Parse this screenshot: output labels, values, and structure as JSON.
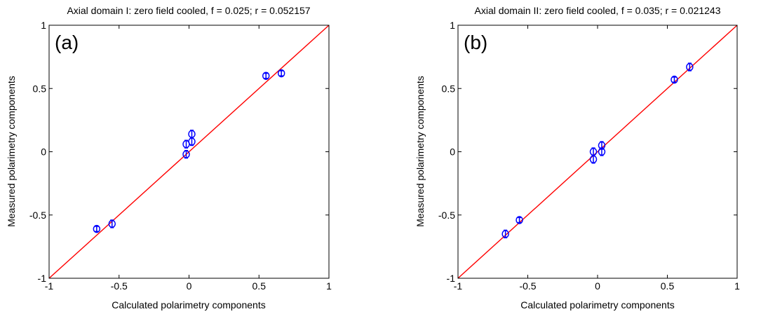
{
  "chart_data": [
    {
      "type": "scatter",
      "title": "Axial domain I: zero field cooled, f = 0.025; r = 0.052157",
      "panel_label": "(a)",
      "xlabel": "Calculated polarimetry components",
      "ylabel": "Measured polarimetry components",
      "xlim": [
        -1,
        1
      ],
      "ylim": [
        -1,
        1
      ],
      "xticks": [
        -1,
        -0.5,
        0,
        0.5,
        1
      ],
      "yticks": [
        -1,
        -0.5,
        0,
        0.5,
        1
      ],
      "xtick_labels": [
        "-1",
        "-0.5",
        "0",
        "0.5",
        "1"
      ],
      "ytick_labels": [
        "-1",
        "-0.5",
        "0",
        "0.5",
        "1"
      ],
      "grid": false,
      "line_color": "#ff0000",
      "marker_color": "#0000ff",
      "reference_line": {
        "x": [
          -1,
          1
        ],
        "y": [
          -1,
          1
        ]
      },
      "points": [
        {
          "x": -0.66,
          "y": -0.61,
          "err": 0.02
        },
        {
          "x": -0.55,
          "y": -0.57,
          "err": 0.03
        },
        {
          "x": -0.02,
          "y": -0.02,
          "err": 0.03
        },
        {
          "x": -0.02,
          "y": 0.06,
          "err": 0.03
        },
        {
          "x": 0.02,
          "y": 0.08,
          "err": 0.03
        },
        {
          "x": 0.02,
          "y": 0.14,
          "err": 0.03
        },
        {
          "x": 0.55,
          "y": 0.6,
          "err": 0.02
        },
        {
          "x": 0.66,
          "y": 0.62,
          "err": 0.02
        }
      ]
    },
    {
      "type": "scatter",
      "title": "Axial domain II: zero field cooled, f = 0.035; r = 0.021243",
      "panel_label": "(b)",
      "xlabel": "Calculated polarimetry components",
      "ylabel": "Measured polarimetry components",
      "xlim": [
        -1,
        1
      ],
      "ylim": [
        -1,
        1
      ],
      "xticks": [
        -1,
        -0.5,
        0,
        0.5,
        1
      ],
      "yticks": [
        -1,
        -0.5,
        0,
        0.5,
        1
      ],
      "xtick_labels": [
        "-1",
        "-0.5",
        "0",
        "0.5",
        "1"
      ],
      "ytick_labels": [
        "-1",
        "-0.5",
        "0",
        "0.5",
        "1"
      ],
      "grid": false,
      "line_color": "#ff0000",
      "marker_color": "#0000ff",
      "reference_line": {
        "x": [
          -1,
          1
        ],
        "y": [
          -1,
          1
        ]
      },
      "points": [
        {
          "x": -0.66,
          "y": -0.65,
          "err": 0.03
        },
        {
          "x": -0.56,
          "y": -0.54,
          "err": 0.02
        },
        {
          "x": -0.03,
          "y": -0.06,
          "err": 0.03
        },
        {
          "x": -0.03,
          "y": 0.0,
          "err": 0.03
        },
        {
          "x": 0.03,
          "y": 0.0,
          "err": 0.03
        },
        {
          "x": 0.03,
          "y": 0.05,
          "err": 0.03
        },
        {
          "x": 0.55,
          "y": 0.57,
          "err": 0.02
        },
        {
          "x": 0.66,
          "y": 0.67,
          "err": 0.03
        }
      ]
    }
  ]
}
